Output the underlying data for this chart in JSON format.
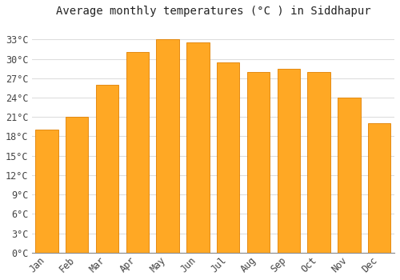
{
  "title": "Average monthly temperatures (°C ) in Siddhapur",
  "months": [
    "Jan",
    "Feb",
    "Mar",
    "Apr",
    "May",
    "Jun",
    "Jul",
    "Aug",
    "Sep",
    "Oct",
    "Nov",
    "Dec"
  ],
  "temperatures": [
    19.0,
    21.0,
    26.0,
    31.0,
    33.0,
    32.5,
    29.5,
    28.0,
    28.5,
    28.0,
    24.0,
    20.0
  ],
  "bar_color": "#FFA824",
  "bar_edge_color": "#E08000",
  "background_color": "#FFFFFF",
  "grid_color": "#DDDDDD",
  "yticks": [
    0,
    3,
    6,
    9,
    12,
    15,
    18,
    21,
    24,
    27,
    30,
    33
  ],
  "ylim": [
    0,
    35.5
  ],
  "title_fontsize": 10,
  "tick_fontsize": 8.5
}
